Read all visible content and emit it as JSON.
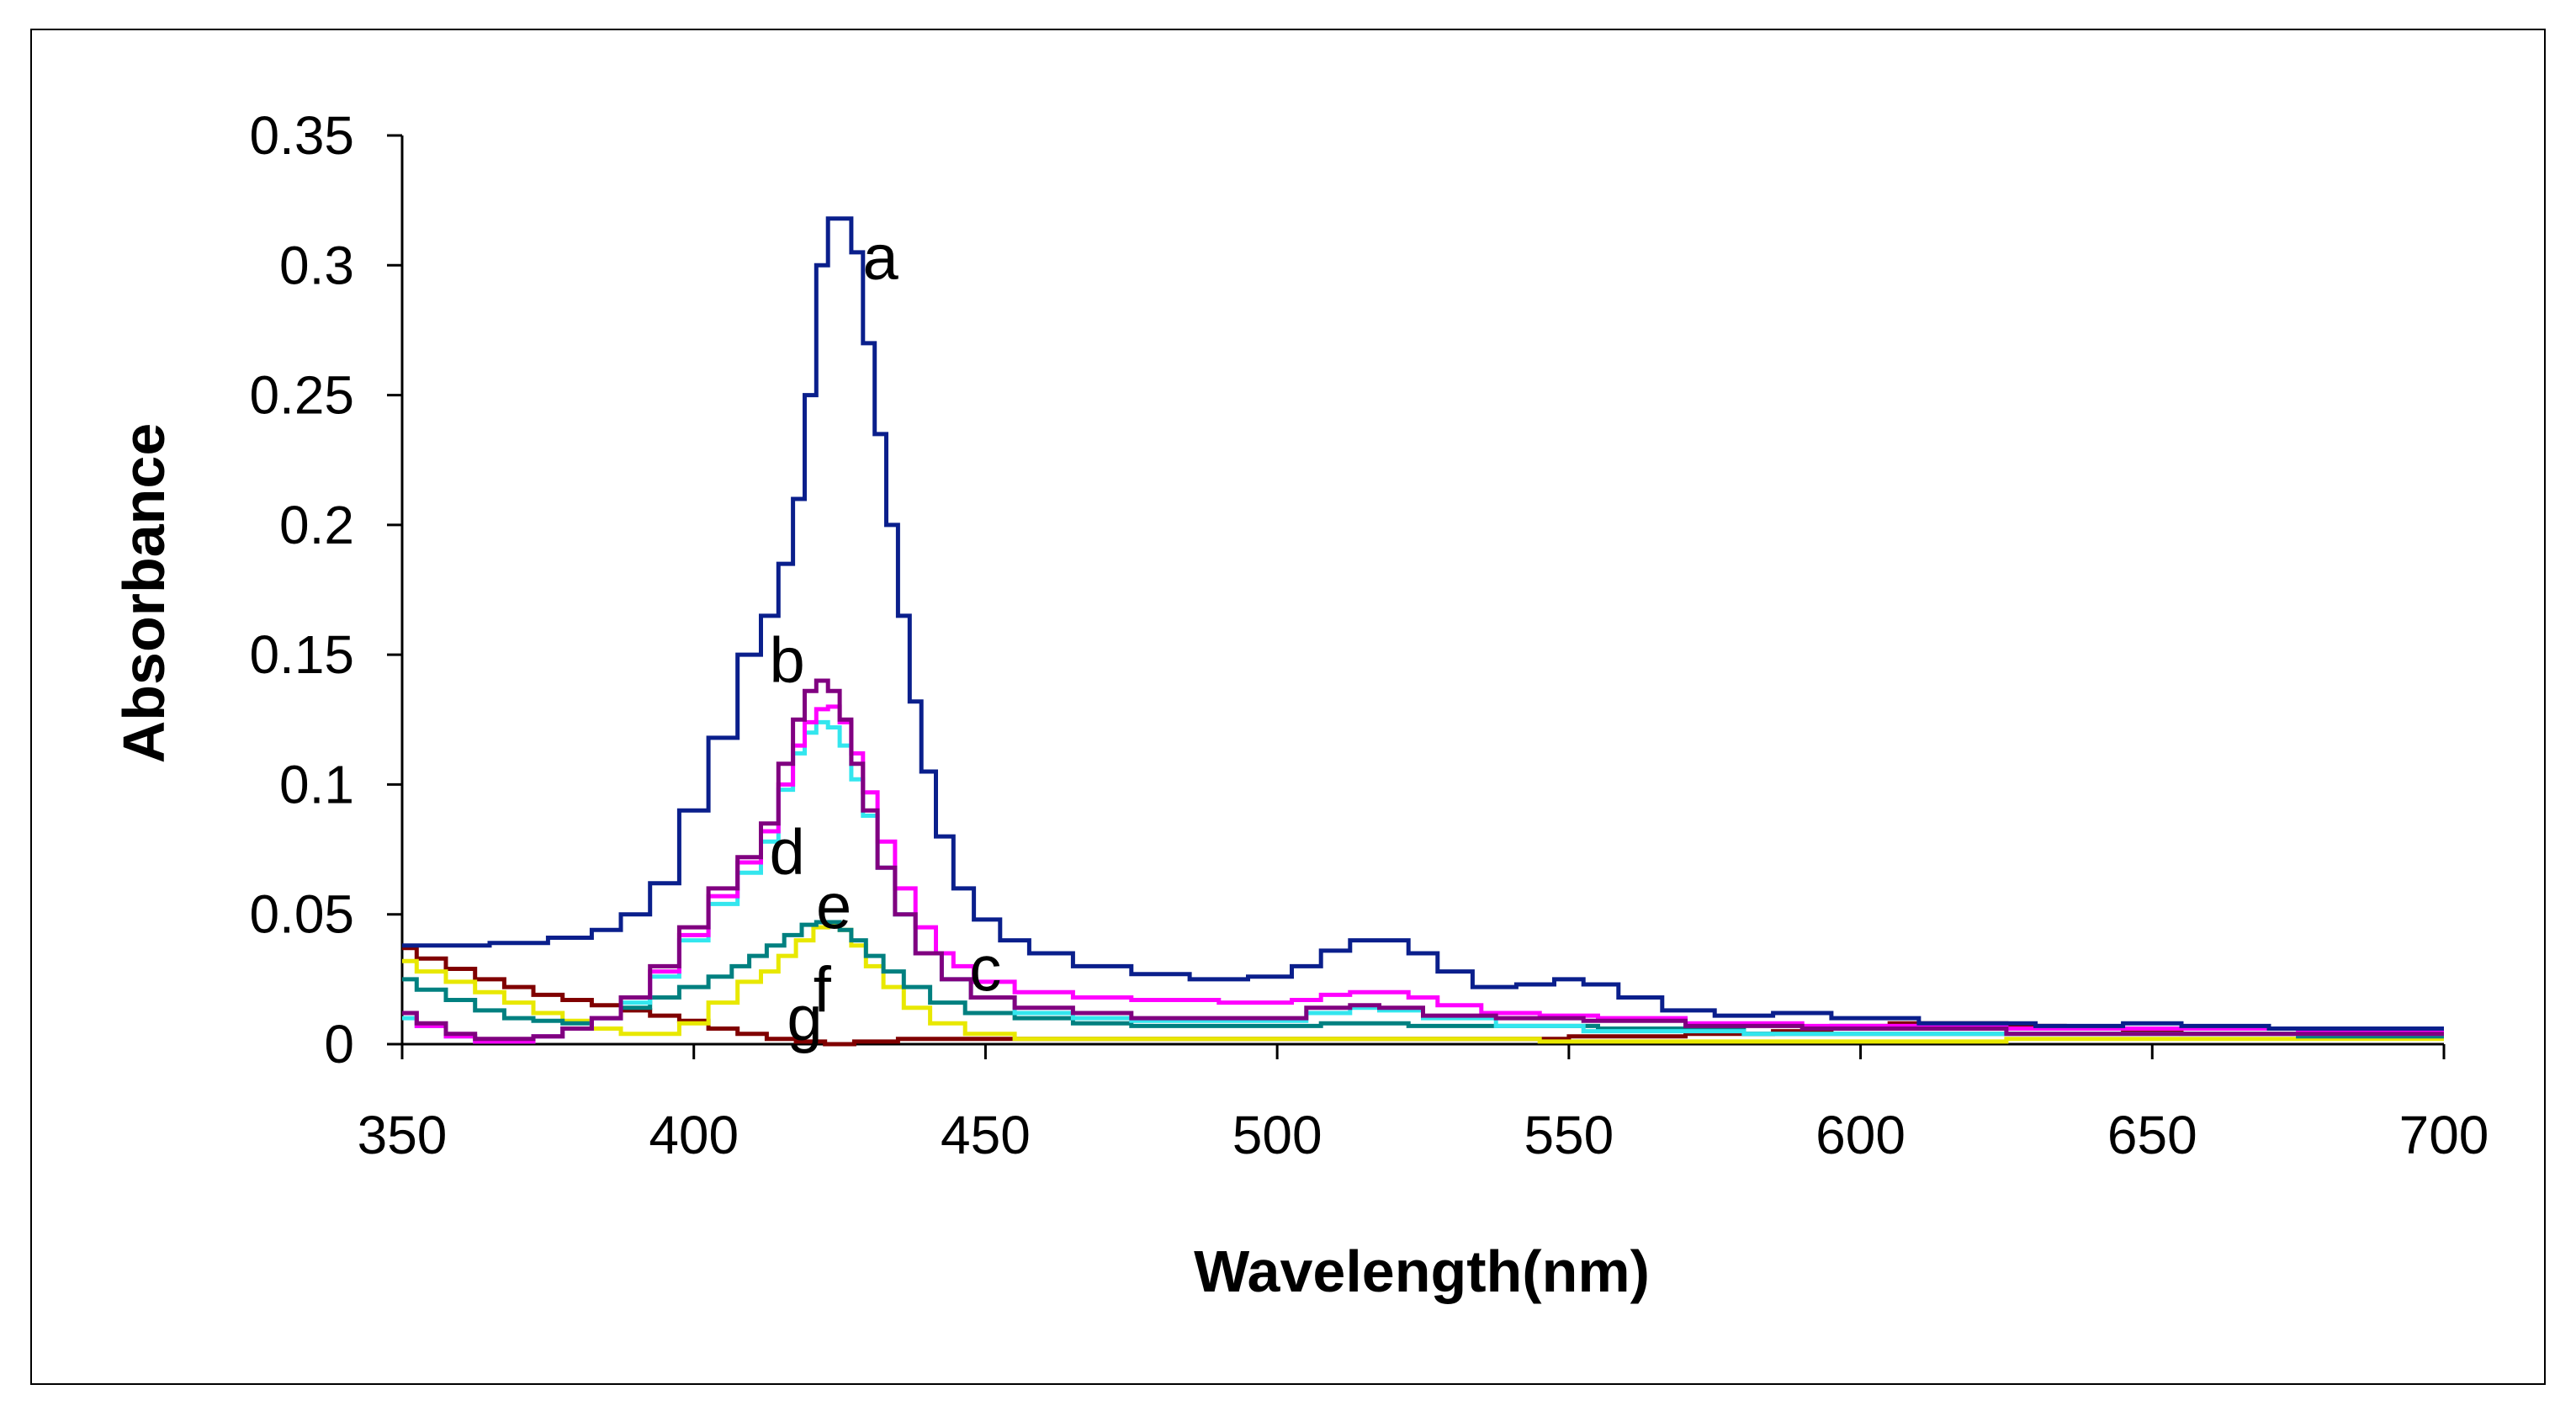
{
  "chart_data": {
    "type": "line",
    "title": "",
    "xlabel": "Wavelength(nm)",
    "ylabel": "Absorbance",
    "xlim": [
      350,
      700
    ],
    "ylim": [
      0,
      0.35
    ],
    "xticks": [
      "350",
      "400",
      "450",
      "500",
      "550",
      "600",
      "650",
      "700"
    ],
    "xtick_values": [
      350,
      400,
      450,
      500,
      550,
      600,
      650,
      700
    ],
    "yticks": [
      "0",
      "0.05",
      "0.1",
      "0.15",
      "0.2",
      "0.25",
      "0.3",
      "0.35"
    ],
    "ytick_values": [
      0,
      0.05,
      0.1,
      0.15,
      0.2,
      0.25,
      0.3,
      0.35
    ],
    "grid": false,
    "series": [
      {
        "name": "a",
        "color": "#0a1f8c",
        "points": [
          [
            350,
            0.038
          ],
          [
            360,
            0.038
          ],
          [
            370,
            0.039
          ],
          [
            380,
            0.041
          ],
          [
            385,
            0.044
          ],
          [
            390,
            0.05
          ],
          [
            395,
            0.062
          ],
          [
            400,
            0.09
          ],
          [
            405,
            0.118
          ],
          [
            410,
            0.15
          ],
          [
            413,
            0.165
          ],
          [
            416,
            0.185
          ],
          [
            418,
            0.21
          ],
          [
            420,
            0.25
          ],
          [
            422,
            0.3
          ],
          [
            424,
            0.318
          ],
          [
            426,
            0.318
          ],
          [
            428,
            0.305
          ],
          [
            430,
            0.27
          ],
          [
            432,
            0.235
          ],
          [
            434,
            0.2
          ],
          [
            436,
            0.165
          ],
          [
            438,
            0.132
          ],
          [
            440,
            0.105
          ],
          [
            443,
            0.08
          ],
          [
            446,
            0.06
          ],
          [
            450,
            0.048
          ],
          [
            455,
            0.04
          ],
          [
            460,
            0.035
          ],
          [
            470,
            0.03
          ],
          [
            480,
            0.027
          ],
          [
            490,
            0.025
          ],
          [
            500,
            0.026
          ],
          [
            505,
            0.03
          ],
          [
            510,
            0.036
          ],
          [
            515,
            0.04
          ],
          [
            520,
            0.04
          ],
          [
            525,
            0.035
          ],
          [
            530,
            0.028
          ],
          [
            537,
            0.022
          ],
          [
            545,
            0.023
          ],
          [
            550,
            0.025
          ],
          [
            555,
            0.023
          ],
          [
            562,
            0.018
          ],
          [
            570,
            0.013
          ],
          [
            580,
            0.011
          ],
          [
            590,
            0.012
          ],
          [
            600,
            0.01
          ],
          [
            620,
            0.008
          ],
          [
            640,
            0.007
          ],
          [
            650,
            0.008
          ],
          [
            660,
            0.007
          ],
          [
            680,
            0.006
          ],
          [
            700,
            0.006
          ]
        ]
      },
      {
        "name": "b",
        "color": "#800080",
        "points": [
          [
            350,
            0.012
          ],
          [
            355,
            0.008
          ],
          [
            360,
            0.004
          ],
          [
            365,
            0.002
          ],
          [
            370,
            0.002
          ],
          [
            375,
            0.003
          ],
          [
            380,
            0.006
          ],
          [
            385,
            0.01
          ],
          [
            390,
            0.018
          ],
          [
            395,
            0.03
          ],
          [
            400,
            0.045
          ],
          [
            405,
            0.06
          ],
          [
            410,
            0.072
          ],
          [
            413,
            0.085
          ],
          [
            416,
            0.108
          ],
          [
            418,
            0.125
          ],
          [
            420,
            0.136
          ],
          [
            422,
            0.14
          ],
          [
            424,
            0.136
          ],
          [
            426,
            0.125
          ],
          [
            428,
            0.108
          ],
          [
            430,
            0.09
          ],
          [
            433,
            0.068
          ],
          [
            436,
            0.05
          ],
          [
            440,
            0.035
          ],
          [
            445,
            0.025
          ],
          [
            450,
            0.018
          ],
          [
            460,
            0.014
          ],
          [
            470,
            0.012
          ],
          [
            480,
            0.01
          ],
          [
            500,
            0.01
          ],
          [
            510,
            0.014
          ],
          [
            515,
            0.015
          ],
          [
            520,
            0.014
          ],
          [
            530,
            0.011
          ],
          [
            545,
            0.01
          ],
          [
            560,
            0.009
          ],
          [
            580,
            0.007
          ],
          [
            600,
            0.006
          ],
          [
            650,
            0.004
          ],
          [
            700,
            0.004
          ]
        ]
      },
      {
        "name": "c",
        "color": "#ff00ff",
        "points": [
          [
            350,
            0.012
          ],
          [
            355,
            0.007
          ],
          [
            360,
            0.003
          ],
          [
            365,
            0.001
          ],
          [
            370,
            0.001
          ],
          [
            375,
            0.003
          ],
          [
            380,
            0.006
          ],
          [
            385,
            0.01
          ],
          [
            390,
            0.018
          ],
          [
            395,
            0.028
          ],
          [
            400,
            0.042
          ],
          [
            405,
            0.057
          ],
          [
            410,
            0.07
          ],
          [
            413,
            0.082
          ],
          [
            416,
            0.1
          ],
          [
            418,
            0.115
          ],
          [
            420,
            0.124
          ],
          [
            422,
            0.129
          ],
          [
            424,
            0.13
          ],
          [
            426,
            0.124
          ],
          [
            428,
            0.112
          ],
          [
            430,
            0.097
          ],
          [
            433,
            0.078
          ],
          [
            436,
            0.06
          ],
          [
            440,
            0.045
          ],
          [
            443,
            0.035
          ],
          [
            446,
            0.03
          ],
          [
            450,
            0.024
          ],
          [
            460,
            0.02
          ],
          [
            470,
            0.018
          ],
          [
            480,
            0.017
          ],
          [
            500,
            0.016
          ],
          [
            505,
            0.017
          ],
          [
            510,
            0.019
          ],
          [
            515,
            0.02
          ],
          [
            520,
            0.02
          ],
          [
            525,
            0.018
          ],
          [
            530,
            0.015
          ],
          [
            540,
            0.012
          ],
          [
            550,
            0.011
          ],
          [
            560,
            0.01
          ],
          [
            580,
            0.008
          ],
          [
            600,
            0.007
          ],
          [
            650,
            0.006
          ],
          [
            700,
            0.005
          ]
        ]
      },
      {
        "name": "d",
        "color": "#33e6ee",
        "points": [
          [
            350,
            0.01
          ],
          [
            355,
            0.007
          ],
          [
            360,
            0.003
          ],
          [
            365,
            0.001
          ],
          [
            370,
            0.001
          ],
          [
            375,
            0.003
          ],
          [
            380,
            0.006
          ],
          [
            385,
            0.01
          ],
          [
            390,
            0.016
          ],
          [
            395,
            0.026
          ],
          [
            400,
            0.04
          ],
          [
            405,
            0.054
          ],
          [
            410,
            0.066
          ],
          [
            413,
            0.078
          ],
          [
            416,
            0.098
          ],
          [
            418,
            0.112
          ],
          [
            420,
            0.12
          ],
          [
            422,
            0.124
          ],
          [
            424,
            0.122
          ],
          [
            426,
            0.115
          ],
          [
            428,
            0.102
          ],
          [
            430,
            0.088
          ],
          [
            433,
            0.068
          ],
          [
            436,
            0.05
          ],
          [
            440,
            0.035
          ],
          [
            445,
            0.025
          ],
          [
            450,
            0.018
          ],
          [
            460,
            0.012
          ],
          [
            470,
            0.01
          ],
          [
            480,
            0.009
          ],
          [
            500,
            0.009
          ],
          [
            510,
            0.012
          ],
          [
            515,
            0.014
          ],
          [
            520,
            0.013
          ],
          [
            530,
            0.01
          ],
          [
            545,
            0.007
          ],
          [
            560,
            0.005
          ],
          [
            600,
            0.004
          ],
          [
            650,
            0.004
          ],
          [
            700,
            0.004
          ]
        ]
      },
      {
        "name": "e",
        "color": "#008080",
        "points": [
          [
            350,
            0.025
          ],
          [
            355,
            0.021
          ],
          [
            360,
            0.017
          ],
          [
            365,
            0.013
          ],
          [
            370,
            0.01
          ],
          [
            375,
            0.009
          ],
          [
            380,
            0.008
          ],
          [
            385,
            0.01
          ],
          [
            390,
            0.014
          ],
          [
            395,
            0.018
          ],
          [
            400,
            0.022
          ],
          [
            405,
            0.026
          ],
          [
            408,
            0.03
          ],
          [
            411,
            0.034
          ],
          [
            414,
            0.038
          ],
          [
            417,
            0.042
          ],
          [
            420,
            0.046
          ],
          [
            422,
            0.047
          ],
          [
            424,
            0.047
          ],
          [
            426,
            0.044
          ],
          [
            428,
            0.04
          ],
          [
            431,
            0.034
          ],
          [
            434,
            0.028
          ],
          [
            438,
            0.022
          ],
          [
            443,
            0.016
          ],
          [
            450,
            0.012
          ],
          [
            460,
            0.01
          ],
          [
            470,
            0.008
          ],
          [
            480,
            0.007
          ],
          [
            500,
            0.007
          ],
          [
            515,
            0.008
          ],
          [
            530,
            0.007
          ],
          [
            550,
            0.007
          ],
          [
            560,
            0.006
          ],
          [
            600,
            0.004
          ],
          [
            650,
            0.004
          ],
          [
            700,
            0.003
          ]
        ]
      },
      {
        "name": "f",
        "color": "#e8e800",
        "points": [
          [
            350,
            0.032
          ],
          [
            355,
            0.028
          ],
          [
            360,
            0.024
          ],
          [
            365,
            0.02
          ],
          [
            370,
            0.016
          ],
          [
            375,
            0.012
          ],
          [
            380,
            0.009
          ],
          [
            385,
            0.006
          ],
          [
            390,
            0.004
          ],
          [
            395,
            0.004
          ],
          [
            400,
            0.008
          ],
          [
            405,
            0.016
          ],
          [
            410,
            0.024
          ],
          [
            413,
            0.028
          ],
          [
            416,
            0.034
          ],
          [
            419,
            0.04
          ],
          [
            422,
            0.045
          ],
          [
            424,
            0.046
          ],
          [
            426,
            0.044
          ],
          [
            428,
            0.038
          ],
          [
            431,
            0.03
          ],
          [
            434,
            0.022
          ],
          [
            438,
            0.014
          ],
          [
            443,
            0.008
          ],
          [
            450,
            0.004
          ],
          [
            460,
            0.002
          ],
          [
            480,
            0.002
          ],
          [
            500,
            0.002
          ],
          [
            530,
            0.002
          ],
          [
            560,
            0.001
          ],
          [
            600,
            0.001
          ],
          [
            650,
            0.002
          ],
          [
            700,
            0.002
          ]
        ]
      },
      {
        "name": "g",
        "color": "#800000",
        "points": [
          [
            350,
            0.037
          ],
          [
            355,
            0.033
          ],
          [
            360,
            0.029
          ],
          [
            365,
            0.025
          ],
          [
            370,
            0.022
          ],
          [
            375,
            0.019
          ],
          [
            380,
            0.017
          ],
          [
            385,
            0.015
          ],
          [
            390,
            0.013
          ],
          [
            395,
            0.011
          ],
          [
            400,
            0.009
          ],
          [
            405,
            0.006
          ],
          [
            410,
            0.004
          ],
          [
            415,
            0.002
          ],
          [
            420,
            0.001
          ],
          [
            425,
            0.0
          ],
          [
            430,
            0.001
          ],
          [
            440,
            0.002
          ],
          [
            450,
            0.002
          ],
          [
            460,
            0.002
          ],
          [
            480,
            0.002
          ],
          [
            500,
            0.002
          ],
          [
            520,
            0.002
          ],
          [
            540,
            0.002
          ],
          [
            560,
            0.003
          ],
          [
            580,
            0.004
          ],
          [
            590,
            0.005
          ],
          [
            600,
            0.007
          ],
          [
            610,
            0.008
          ],
          [
            620,
            0.008
          ],
          [
            630,
            0.007
          ],
          [
            640,
            0.006
          ],
          [
            650,
            0.005
          ],
          [
            660,
            0.004
          ],
          [
            680,
            0.004
          ],
          [
            700,
            0.004
          ]
        ]
      }
    ],
    "annotations": [
      {
        "text": "a",
        "x": 432,
        "y": 0.303
      },
      {
        "text": "b",
        "x": 416,
        "y": 0.148
      },
      {
        "text": "c",
        "x": 450,
        "y": 0.029
      },
      {
        "text": "d",
        "x": 416,
        "y": 0.074
      },
      {
        "text": "e",
        "x": 424,
        "y": 0.053
      },
      {
        "text": "f",
        "x": 422,
        "y": 0.021
      },
      {
        "text": "g",
        "x": 419,
        "y": 0.01
      }
    ]
  }
}
